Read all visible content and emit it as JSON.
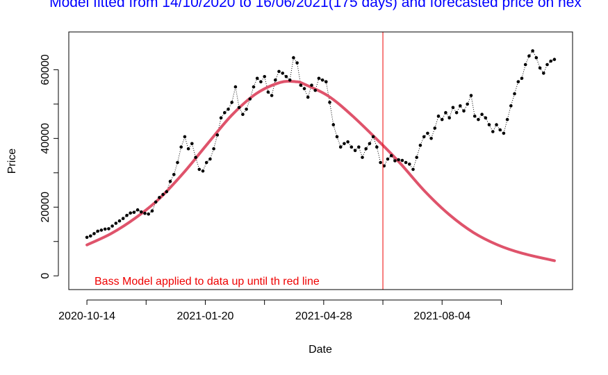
{
  "chart_data": {
    "type": "line",
    "title": "Model fitted from 14/10/2020 to 16/06/2021(175 days) and forecasted price on nex",
    "xlabel": "Date",
    "ylabel": "Price",
    "x_ticks": [
      {
        "value": 0,
        "label": "2020-10-14"
      },
      {
        "value": 98,
        "label": "2021-01-20"
      },
      {
        "value": 196,
        "label": "2021-04-28"
      },
      {
        "value": 294,
        "label": "2021-08-04"
      },
      {
        "value": 343,
        "label": ""
      }
    ],
    "y_ticks": [
      0,
      20000,
      40000,
      60000
    ],
    "xlim": [
      -15,
      402
    ],
    "ylim": [
      -4000,
      71000
    ],
    "vertical_line": {
      "x": 245,
      "color": "#ee0000"
    },
    "annotation": {
      "text": "Bass Model applied to data up until th red line",
      "x": 6,
      "y": 0,
      "color": "#ee0000"
    },
    "series": [
      {
        "type": "line",
        "color": "#df536b",
        "x": [
          0,
          20,
          40,
          60,
          80,
          100,
          120,
          140,
          160,
          173,
          180,
          200,
          220,
          245,
          260,
          280,
          300,
          320,
          340,
          360,
          387
        ],
        "values": [
          9000,
          12300,
          16800,
          22500,
          30000,
          38500,
          46800,
          53000,
          56300,
          56500,
          55800,
          52300,
          46500,
          38000,
          32500,
          24500,
          17800,
          12600,
          9000,
          6600,
          4400
        ]
      },
      {
        "type": "scatter",
        "color": "#000000",
        "x": [
          0,
          3,
          6,
          9,
          12,
          15,
          18,
          21,
          24,
          27,
          30,
          33,
          36,
          39,
          42,
          45,
          48,
          51,
          54,
          57,
          60,
          63,
          66,
          69,
          72,
          75,
          78,
          81,
          84,
          87,
          90,
          93,
          96,
          99,
          102,
          105,
          108,
          111,
          114,
          117,
          120,
          123,
          126,
          129,
          132,
          135,
          138,
          141,
          144,
          147,
          150,
          153,
          156,
          159,
          162,
          165,
          168,
          171,
          174,
          177,
          180,
          183,
          186,
          189,
          192,
          195,
          198,
          201,
          204,
          207,
          210,
          213,
          216,
          219,
          222,
          225,
          228,
          231,
          234,
          237,
          240,
          243,
          246,
          249,
          252,
          255,
          258,
          261,
          264,
          267,
          270,
          273,
          276,
          279,
          282,
          285,
          288,
          291,
          294,
          297,
          300,
          303,
          306,
          309,
          312,
          315,
          318,
          321,
          324,
          327,
          330,
          333,
          336,
          339,
          342,
          345,
          348,
          351,
          354,
          357,
          360,
          363,
          366,
          369,
          372,
          375,
          378,
          381,
          384,
          387
        ],
        "values": [
          11200,
          11600,
          12300,
          13000,
          13300,
          13600,
          13700,
          14500,
          15300,
          16000,
          16700,
          17600,
          18300,
          18500,
          19200,
          18600,
          18200,
          18000,
          18900,
          21500,
          22800,
          23700,
          24500,
          27500,
          29500,
          33000,
          37500,
          40500,
          37000,
          38500,
          34500,
          31000,
          30500,
          33000,
          34000,
          37000,
          41000,
          46000,
          47500,
          48500,
          50500,
          55000,
          49000,
          47000,
          48500,
          51500,
          55000,
          57500,
          56500,
          58000,
          53500,
          52500,
          57000,
          59500,
          59000,
          58000,
          57000,
          63500,
          62000,
          55500,
          54500,
          52000,
          55500,
          54000,
          57500,
          57000,
          56500,
          50500,
          44000,
          40500,
          37500,
          38500,
          39000,
          37500,
          36500,
          37500,
          34500,
          37000,
          38500,
          40500,
          37500,
          33000,
          32000,
          34000,
          35000,
          33500,
          33800,
          33600,
          33000,
          32500,
          31000,
          34500,
          38000,
          40500,
          41500,
          40000,
          43000,
          46500,
          45500,
          47500,
          46000,
          49000,
          47500,
          49500,
          48000,
          50000,
          52500,
          46500,
          45500,
          47000,
          46000,
          44000,
          42000,
          44000,
          42500,
          41500,
          45500,
          49500,
          53000,
          56500,
          57500,
          61500,
          64000,
          65500,
          63500,
          60500,
          59000,
          61500,
          62500,
          63000
        ]
      }
    ]
  }
}
